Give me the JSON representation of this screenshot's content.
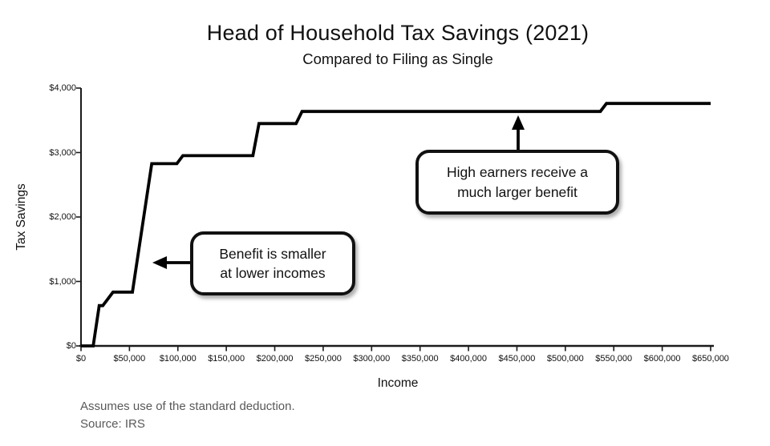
{
  "title": "Head of Household Tax Savings (2021)",
  "subtitle": "Compared to Filing as Single",
  "axes": {
    "x_label": "Income",
    "y_label": "Tax Savings",
    "x_ticks": [
      {
        "value": 0,
        "label": "$0"
      },
      {
        "value": 50000,
        "label": "$50,000"
      },
      {
        "value": 100000,
        "label": "$100,000"
      },
      {
        "value": 150000,
        "label": "$150,000"
      },
      {
        "value": 200000,
        "label": "$200,000"
      },
      {
        "value": 250000,
        "label": "$250,000"
      },
      {
        "value": 300000,
        "label": "$300,000"
      },
      {
        "value": 350000,
        "label": "$350,000"
      },
      {
        "value": 400000,
        "label": "$400,000"
      },
      {
        "value": 450000,
        "label": "$450,000"
      },
      {
        "value": 500000,
        "label": "$500,000"
      },
      {
        "value": 550000,
        "label": "$550,000"
      },
      {
        "value": 600000,
        "label": "$600,000"
      },
      {
        "value": 650000,
        "label": "$650,000"
      }
    ],
    "y_ticks": [
      {
        "value": 0,
        "label": "$0"
      },
      {
        "value": 1000,
        "label": "$1,000"
      },
      {
        "value": 2000,
        "label": "$2,000"
      },
      {
        "value": 3000,
        "label": "$3,000"
      },
      {
        "value": 4000,
        "label": "$4,000"
      }
    ]
  },
  "chart_data": {
    "type": "line",
    "title": "Head of Household Tax Savings (2021)",
    "subtitle": "Compared to Filing as Single",
    "xlabel": "Income",
    "ylabel": "Tax Savings",
    "xlim": [
      0,
      650000
    ],
    "ylim": [
      0,
      4000
    ],
    "grid": false,
    "legend": "none",
    "line_color": "#000000",
    "line_width": 3.8,
    "x": [
      0,
      12550,
      18800,
      22500,
      33000,
      53075,
      73000,
      98925,
      105150,
      177475,
      183700,
      221975,
      228200,
      536150,
      542400,
      650000
    ],
    "y": [
      0,
      0,
      625,
      625,
      835,
      835,
      2827,
      2827,
      2952,
      2952,
      3450,
      3450,
      3637,
      3637,
      3762,
      3762
    ]
  },
  "annotations": [
    {
      "lines": [
        "Benefit is smaller",
        "at lower incomes"
      ]
    },
    {
      "lines": [
        "High earners receive a",
        "much larger benefit"
      ]
    }
  ],
  "footer": {
    "line1": "Assumes use of the standard deduction.",
    "line2": "Source: IRS"
  },
  "colors": {
    "line": "#000000",
    "axis": "#1a1a1a",
    "footnote": "#595959",
    "callout_border": "#111111",
    "callout_fill": "#ffffff"
  }
}
